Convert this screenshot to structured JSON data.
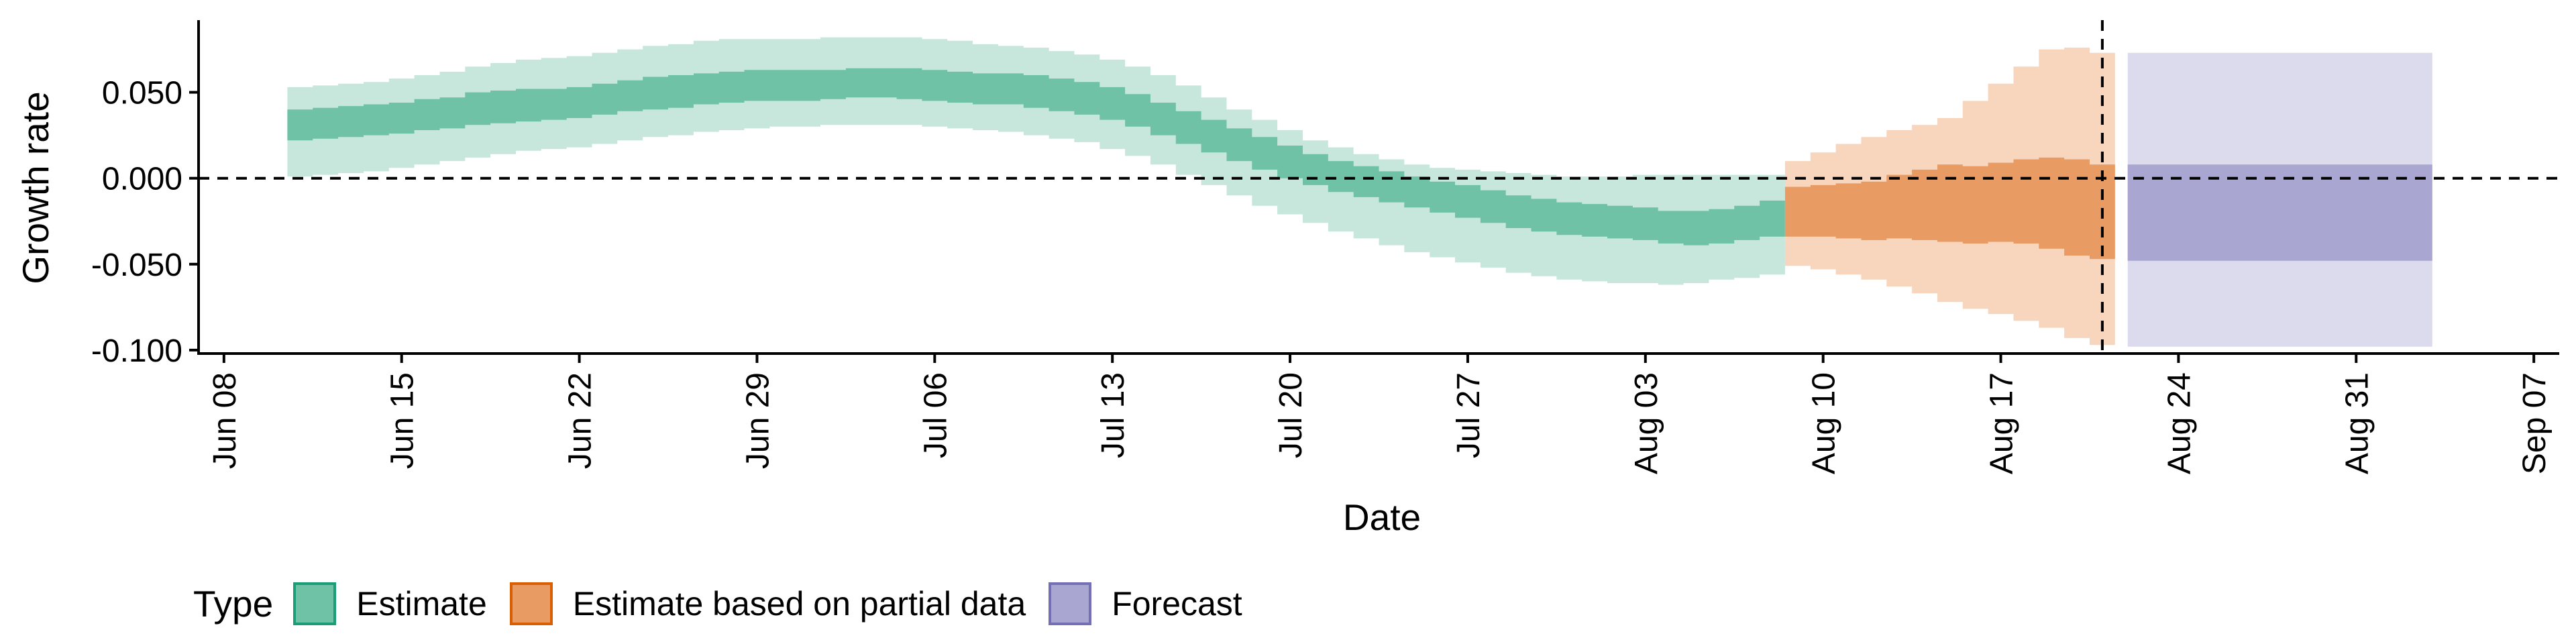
{
  "chart_data": {
    "type": "area",
    "xlabel": "Date",
    "ylabel": "Growth rate",
    "xlim": [
      "2020-06-07",
      "2020-09-08"
    ],
    "ylim": [
      -0.102,
      0.092
    ],
    "x_ticks": [
      {
        "date": "2020-06-08",
        "label": "Jun 08"
      },
      {
        "date": "2020-06-15",
        "label": "Jun 15"
      },
      {
        "date": "2020-06-22",
        "label": "Jun 22"
      },
      {
        "date": "2020-06-29",
        "label": "Jun 29"
      },
      {
        "date": "2020-07-06",
        "label": "Jul 06"
      },
      {
        "date": "2020-07-13",
        "label": "Jul 13"
      },
      {
        "date": "2020-07-20",
        "label": "Jul 20"
      },
      {
        "date": "2020-07-27",
        "label": "Jul 27"
      },
      {
        "date": "2020-08-03",
        "label": "Aug 03"
      },
      {
        "date": "2020-08-10",
        "label": "Aug 10"
      },
      {
        "date": "2020-08-17",
        "label": "Aug 17"
      },
      {
        "date": "2020-08-24",
        "label": "Aug 24"
      },
      {
        "date": "2020-08-31",
        "label": "Aug 31"
      },
      {
        "date": "2020-09-07",
        "label": "Sep 07"
      }
    ],
    "y_ticks": [
      {
        "value": 0.05,
        "label": "0.050"
      },
      {
        "value": 0.0,
        "label": "0.000"
      },
      {
        "value": -0.05,
        "label": "-0.050"
      },
      {
        "value": -0.1,
        "label": "-0.100"
      }
    ],
    "hline": 0,
    "vline": "2020-08-21",
    "series": [
      {
        "name": "Estimate",
        "color": "#1b9e77",
        "fill_outer": "#c7e7dc",
        "fill_inner": "#6fc2a5",
        "dates": [
          "2020-06-11",
          "2020-06-12",
          "2020-06-13",
          "2020-06-14",
          "2020-06-15",
          "2020-06-16",
          "2020-06-17",
          "2020-06-18",
          "2020-06-19",
          "2020-06-20",
          "2020-06-21",
          "2020-06-22",
          "2020-06-23",
          "2020-06-24",
          "2020-06-25",
          "2020-06-26",
          "2020-06-27",
          "2020-06-28",
          "2020-06-29",
          "2020-06-30",
          "2020-07-01",
          "2020-07-02",
          "2020-07-03",
          "2020-07-04",
          "2020-07-05",
          "2020-07-06",
          "2020-07-07",
          "2020-07-08",
          "2020-07-09",
          "2020-07-10",
          "2020-07-11",
          "2020-07-12",
          "2020-07-13",
          "2020-07-14",
          "2020-07-15",
          "2020-07-16",
          "2020-07-17",
          "2020-07-18",
          "2020-07-19",
          "2020-07-20",
          "2020-07-21",
          "2020-07-22",
          "2020-07-23",
          "2020-07-24",
          "2020-07-25",
          "2020-07-26",
          "2020-07-27",
          "2020-07-28",
          "2020-07-29",
          "2020-07-30",
          "2020-07-31",
          "2020-08-01",
          "2020-08-02",
          "2020-08-03",
          "2020-08-04",
          "2020-08-05",
          "2020-08-06",
          "2020-08-07",
          "2020-08-08"
        ],
        "outer_upper": [
          0.053,
          0.054,
          0.055,
          0.056,
          0.058,
          0.06,
          0.062,
          0.065,
          0.067,
          0.069,
          0.07,
          0.071,
          0.073,
          0.075,
          0.077,
          0.078,
          0.08,
          0.081,
          0.081,
          0.081,
          0.081,
          0.082,
          0.082,
          0.082,
          0.082,
          0.081,
          0.08,
          0.078,
          0.077,
          0.076,
          0.074,
          0.072,
          0.069,
          0.065,
          0.06,
          0.054,
          0.047,
          0.04,
          0.034,
          0.028,
          0.022,
          0.018,
          0.014,
          0.011,
          0.008,
          0.006,
          0.005,
          0.004,
          0.003,
          0.002,
          0.001,
          0.001,
          0.001,
          0.002,
          0.002,
          0.002,
          0.002,
          0.002,
          0.002
        ],
        "inner_upper": [
          0.04,
          0.041,
          0.042,
          0.043,
          0.044,
          0.046,
          0.047,
          0.05,
          0.051,
          0.052,
          0.052,
          0.053,
          0.055,
          0.057,
          0.059,
          0.06,
          0.061,
          0.062,
          0.063,
          0.063,
          0.063,
          0.063,
          0.064,
          0.064,
          0.064,
          0.063,
          0.062,
          0.061,
          0.061,
          0.06,
          0.058,
          0.056,
          0.053,
          0.049,
          0.044,
          0.039,
          0.034,
          0.029,
          0.024,
          0.019,
          0.014,
          0.01,
          0.007,
          0.004,
          0.001,
          -0.002,
          -0.004,
          -0.007,
          -0.01,
          -0.012,
          -0.014,
          -0.015,
          -0.016,
          -0.017,
          -0.019,
          -0.019,
          -0.018,
          -0.016,
          -0.013
        ],
        "inner_lower": [
          0.022,
          0.023,
          0.024,
          0.025,
          0.026,
          0.028,
          0.029,
          0.031,
          0.032,
          0.033,
          0.034,
          0.035,
          0.037,
          0.039,
          0.04,
          0.041,
          0.043,
          0.044,
          0.045,
          0.045,
          0.045,
          0.046,
          0.047,
          0.047,
          0.046,
          0.045,
          0.044,
          0.043,
          0.043,
          0.041,
          0.039,
          0.037,
          0.034,
          0.03,
          0.025,
          0.02,
          0.015,
          0.01,
          0.005,
          0.0,
          -0.004,
          -0.008,
          -0.011,
          -0.014,
          -0.017,
          -0.02,
          -0.023,
          -0.026,
          -0.029,
          -0.031,
          -0.033,
          -0.034,
          -0.035,
          -0.036,
          -0.038,
          -0.039,
          -0.038,
          -0.036,
          -0.034
        ],
        "outer_lower": [
          0.001,
          0.002,
          0.003,
          0.004,
          0.006,
          0.008,
          0.01,
          0.012,
          0.014,
          0.016,
          0.017,
          0.018,
          0.02,
          0.022,
          0.024,
          0.025,
          0.027,
          0.028,
          0.029,
          0.03,
          0.03,
          0.031,
          0.031,
          0.031,
          0.031,
          0.03,
          0.029,
          0.028,
          0.027,
          0.025,
          0.023,
          0.021,
          0.017,
          0.013,
          0.008,
          0.002,
          -0.004,
          -0.01,
          -0.016,
          -0.021,
          -0.026,
          -0.031,
          -0.035,
          -0.039,
          -0.043,
          -0.046,
          -0.049,
          -0.052,
          -0.055,
          -0.057,
          -0.059,
          -0.06,
          -0.061,
          -0.061,
          -0.062,
          -0.061,
          -0.059,
          -0.058,
          -0.056
        ]
      },
      {
        "name": "Estimate based on partial data",
        "color": "#d95f02",
        "fill_outer": "#f7d6bd",
        "fill_inner": "#e89b62",
        "dates": [
          "2020-08-09",
          "2020-08-10",
          "2020-08-11",
          "2020-08-12",
          "2020-08-13",
          "2020-08-14",
          "2020-08-15",
          "2020-08-16",
          "2020-08-17",
          "2020-08-18",
          "2020-08-19",
          "2020-08-20",
          "2020-08-21"
        ],
        "outer_upper": [
          0.01,
          0.015,
          0.02,
          0.024,
          0.028,
          0.031,
          0.035,
          0.045,
          0.055,
          0.065,
          0.075,
          0.076,
          0.073
        ],
        "inner_upper": [
          -0.005,
          -0.004,
          -0.003,
          -0.002,
          0.002,
          0.005,
          0.008,
          0.007,
          0.009,
          0.011,
          0.012,
          0.011,
          0.008
        ],
        "inner_lower": [
          -0.034,
          -0.034,
          -0.035,
          -0.036,
          -0.035,
          -0.036,
          -0.037,
          -0.038,
          -0.037,
          -0.038,
          -0.041,
          -0.045,
          -0.047
        ],
        "outer_lower": [
          -0.051,
          -0.053,
          -0.056,
          -0.059,
          -0.063,
          -0.067,
          -0.072,
          -0.076,
          -0.079,
          -0.083,
          -0.087,
          -0.093,
          -0.097
        ]
      },
      {
        "name": "Forecast",
        "color": "#7570b3",
        "fill_outer": "#dcdaed",
        "fill_inner": "#a9a6d2",
        "dates": [
          "2020-08-22",
          "2020-09-03"
        ],
        "outer_upper": [
          0.073,
          0.073
        ],
        "inner_upper": [
          0.008,
          0.008
        ],
        "inner_lower": [
          -0.048,
          -0.048
        ],
        "outer_lower": [
          -0.098,
          -0.098
        ]
      }
    ]
  },
  "legend": {
    "title": "Type",
    "items": [
      {
        "label": "Estimate",
        "fill": "#6fc2a5",
        "border": "#1b9e77"
      },
      {
        "label": "Estimate based on partial data",
        "fill": "#e89b62",
        "border": "#d95f02"
      },
      {
        "label": "Forecast",
        "fill": "#a9a6d2",
        "border": "#7570b3"
      }
    ]
  }
}
